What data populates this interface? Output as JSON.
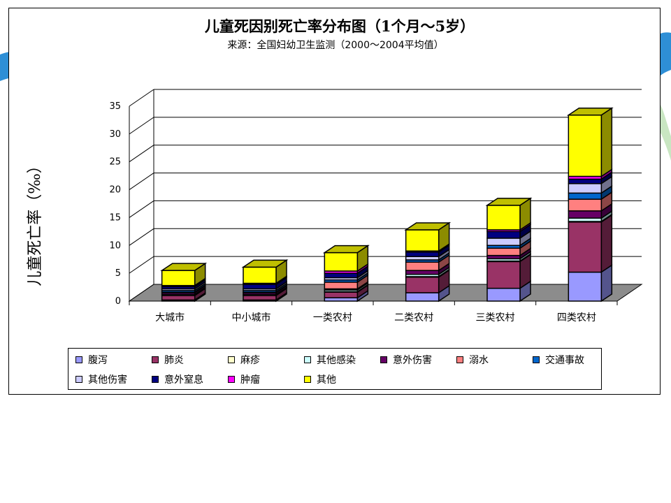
{
  "colors": {
    "slide_accent_blue": "#2e8fd6",
    "slide_accent_green": "#c9e6c2",
    "floor": "#8c8c8c",
    "gridline": "#000000"
  },
  "chart_data": {
    "type": "bar",
    "stacked": true,
    "three_d": true,
    "title": "儿童死因别死亡率分布图（1个月～5岁）",
    "subtitle": "来源：全国妇幼卫生监测（2000～2004平均值）",
    "ylabel": "儿童死亡率（‰）",
    "xlabel": "",
    "ylim": [
      0,
      35
    ],
    "yticks": [
      0,
      5,
      10,
      15,
      20,
      25,
      30,
      35
    ],
    "grid": true,
    "legend_position": "bottom",
    "categories": [
      "大城市",
      "中小城市",
      "一类农村",
      "二类农村",
      "三类农村",
      "四类农村"
    ],
    "series": [
      {
        "name": "腹泻",
        "color": "#9999ff",
        "values": [
          0.2,
          0.2,
          0.6,
          1.5,
          2.3,
          5.2
        ]
      },
      {
        "name": "肺炎",
        "color": "#993366",
        "values": [
          0.8,
          0.8,
          1.0,
          2.8,
          4.8,
          9.0
        ]
      },
      {
        "name": "麻疹",
        "color": "#ffffcc",
        "values": [
          0.0,
          0.0,
          0.1,
          0.1,
          0.1,
          0.1
        ]
      },
      {
        "name": "其他感染",
        "color": "#ccffff",
        "values": [
          0.2,
          0.2,
          0.3,
          0.4,
          0.4,
          0.6
        ]
      },
      {
        "name": "意外伤害",
        "color": "#660066",
        "values": [
          0.3,
          0.3,
          0.2,
          0.7,
          0.6,
          1.3
        ]
      },
      {
        "name": "溺水",
        "color": "#ff8080",
        "values": [
          0.1,
          0.1,
          1.2,
          1.5,
          1.3,
          2.1
        ]
      },
      {
        "name": "交通事故",
        "color": "#0066cc",
        "values": [
          0.3,
          0.3,
          0.4,
          0.4,
          0.5,
          1.1
        ]
      },
      {
        "name": "其他伤害",
        "color": "#ccccff",
        "values": [
          0.3,
          0.3,
          0.4,
          0.6,
          1.3,
          1.7
        ]
      },
      {
        "name": "意外窒息",
        "color": "#000080",
        "values": [
          0.4,
          0.8,
          0.8,
          0.8,
          1.2,
          0.8
        ]
      },
      {
        "name": "肿瘤",
        "color": "#ff00ff",
        "values": [
          0.2,
          0.2,
          0.4,
          0.2,
          0.3,
          0.5
        ]
      },
      {
        "name": "其他",
        "color": "#ffff00",
        "values": [
          2.7,
          2.9,
          3.3,
          3.8,
          4.4,
          11.0
        ]
      }
    ]
  }
}
